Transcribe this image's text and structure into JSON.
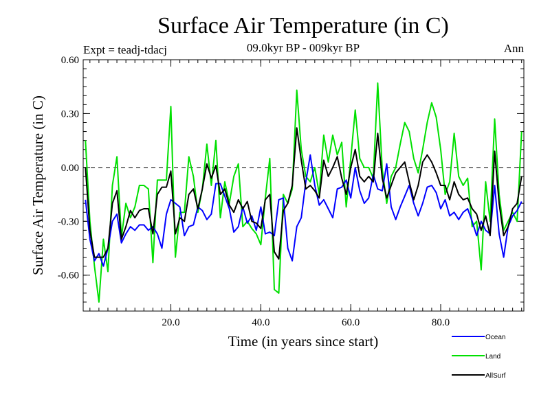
{
  "chart_data": {
    "type": "line",
    "title": "Surface Air Temperature (in C)",
    "subtitle_left": "Expt = teadj-tdacj",
    "subtitle_center": "09.0kyr BP - 009kyr BP",
    "subtitle_right": "Ann",
    "xlabel": "Time (in years since start)",
    "ylabel": "Surface Air Temperature (in C)",
    "xlim": [
      0.5,
      98.5
    ],
    "ylim": [
      -0.8,
      0.6
    ],
    "xticks": [
      20,
      40,
      60,
      80
    ],
    "xtick_labels": [
      "20.0",
      "40.0",
      "60.0",
      "80.0"
    ],
    "yticks": [
      0.6,
      0.3,
      0.0,
      -0.3,
      -0.6
    ],
    "ytick_labels": [
      "0.60",
      "0.30",
      "0.00",
      "-0.30",
      "-0.60"
    ],
    "zero_line": "dashed",
    "legend_position": "bottom-right, outside plot",
    "x": [
      1,
      2,
      3,
      4,
      5,
      6,
      7,
      8,
      9,
      10,
      11,
      12,
      13,
      14,
      15,
      16,
      17,
      18,
      19,
      20,
      21,
      22,
      23,
      24,
      25,
      26,
      27,
      28,
      29,
      30,
      31,
      32,
      33,
      34,
      35,
      36,
      37,
      38,
      39,
      40,
      41,
      42,
      43,
      44,
      45,
      46,
      47,
      48,
      49,
      50,
      51,
      52,
      53,
      54,
      55,
      56,
      57,
      58,
      59,
      60,
      61,
      62,
      63,
      64,
      65,
      66,
      67,
      68,
      69,
      70,
      71,
      72,
      73,
      74,
      75,
      76,
      77,
      78,
      79,
      80,
      81,
      82,
      83,
      84,
      85,
      86,
      87,
      88,
      89,
      90,
      91,
      92,
      93,
      94,
      95,
      96,
      97,
      98
    ],
    "series": [
      {
        "name": "Ocean",
        "color": "#0000ff",
        "values": [
          -0.18,
          -0.4,
          -0.52,
          -0.48,
          -0.55,
          -0.45,
          -0.3,
          -0.26,
          -0.42,
          -0.37,
          -0.33,
          -0.35,
          -0.32,
          -0.32,
          -0.35,
          -0.33,
          -0.37,
          -0.45,
          -0.26,
          -0.18,
          -0.2,
          -0.22,
          -0.38,
          -0.33,
          -0.32,
          -0.22,
          -0.24,
          -0.29,
          -0.26,
          -0.09,
          -0.09,
          -0.16,
          -0.23,
          -0.36,
          -0.33,
          -0.22,
          -0.31,
          -0.27,
          -0.35,
          -0.22,
          -0.37,
          -0.36,
          -0.38,
          -0.18,
          -0.17,
          -0.45,
          -0.52,
          -0.33,
          -0.28,
          -0.08,
          0.07,
          -0.1,
          -0.21,
          -0.18,
          -0.23,
          -0.28,
          -0.12,
          -0.11,
          -0.07,
          -0.17,
          0.0,
          -0.13,
          -0.2,
          -0.17,
          -0.04,
          -0.12,
          -0.13,
          0.02,
          -0.22,
          -0.29,
          -0.22,
          -0.16,
          -0.1,
          -0.2,
          -0.27,
          -0.2,
          -0.11,
          -0.1,
          -0.14,
          -0.23,
          -0.18,
          -0.27,
          -0.25,
          -0.29,
          -0.25,
          -0.23,
          -0.3,
          -0.38,
          -0.3,
          -0.35,
          -0.37,
          -0.1,
          -0.37,
          -0.5,
          -0.33,
          -0.27,
          -0.24,
          -0.19
        ]
      },
      {
        "name": "Land",
        "color": "#00e000",
        "values": [
          0.15,
          -0.3,
          -0.55,
          -0.75,
          -0.4,
          -0.58,
          -0.1,
          0.06,
          -0.39,
          -0.2,
          -0.28,
          -0.22,
          -0.1,
          -0.1,
          -0.12,
          -0.53,
          -0.07,
          -0.07,
          -0.07,
          0.34,
          -0.5,
          -0.25,
          -0.25,
          0.06,
          -0.05,
          -0.25,
          -0.12,
          0.13,
          -0.1,
          0.15,
          -0.28,
          -0.08,
          -0.2,
          -0.05,
          0.02,
          -0.33,
          -0.3,
          -0.34,
          -0.37,
          -0.43,
          -0.17,
          0.05,
          -0.68,
          -0.7,
          -0.15,
          -0.2,
          -0.12,
          0.43,
          0.1,
          -0.05,
          -0.08,
          0.0,
          -0.15,
          0.18,
          0.03,
          0.18,
          0.07,
          0.14,
          -0.22,
          0.05,
          0.32,
          0.05,
          0.0,
          0.0,
          -0.06,
          0.47,
          -0.01,
          -0.2,
          -0.05,
          0.0,
          0.13,
          0.25,
          0.2,
          0.05,
          -0.03,
          0.1,
          0.25,
          0.36,
          0.28,
          0.1,
          -0.15,
          -0.08,
          0.19,
          -0.05,
          -0.1,
          -0.06,
          -0.33,
          -0.3,
          -0.57,
          -0.08,
          -0.3,
          0.27,
          -0.15,
          -0.35,
          -0.3,
          -0.25,
          -0.3,
          0.2
        ]
      },
      {
        "name": "AllSurf",
        "color": "#000000",
        "values": [
          0.0,
          -0.35,
          -0.5,
          -0.5,
          -0.5,
          -0.45,
          -0.2,
          -0.13,
          -0.4,
          -0.33,
          -0.24,
          -0.28,
          -0.24,
          -0.23,
          -0.23,
          -0.37,
          -0.15,
          -0.11,
          -0.11,
          -0.02,
          -0.37,
          -0.28,
          -0.3,
          -0.15,
          -0.12,
          -0.23,
          -0.12,
          0.02,
          -0.06,
          0.01,
          -0.15,
          -0.12,
          -0.21,
          -0.25,
          -0.18,
          -0.23,
          -0.19,
          -0.3,
          -0.31,
          -0.34,
          -0.18,
          -0.15,
          -0.47,
          -0.51,
          -0.24,
          -0.2,
          -0.1,
          0.22,
          0.04,
          -0.12,
          -0.1,
          -0.13,
          -0.17,
          0.04,
          -0.05,
          0.0,
          0.06,
          -0.06,
          -0.15,
          0.0,
          0.1,
          -0.05,
          -0.08,
          -0.05,
          -0.08,
          0.19,
          -0.06,
          -0.17,
          -0.1,
          -0.03,
          0.0,
          0.03,
          -0.08,
          -0.18,
          -0.1,
          0.03,
          0.07,
          0.03,
          -0.03,
          -0.1,
          -0.1,
          -0.18,
          -0.08,
          -0.15,
          -0.18,
          -0.17,
          -0.23,
          -0.26,
          -0.35,
          -0.27,
          -0.38,
          0.09,
          -0.2,
          -0.38,
          -0.33,
          -0.23,
          -0.2,
          -0.05
        ]
      }
    ]
  }
}
